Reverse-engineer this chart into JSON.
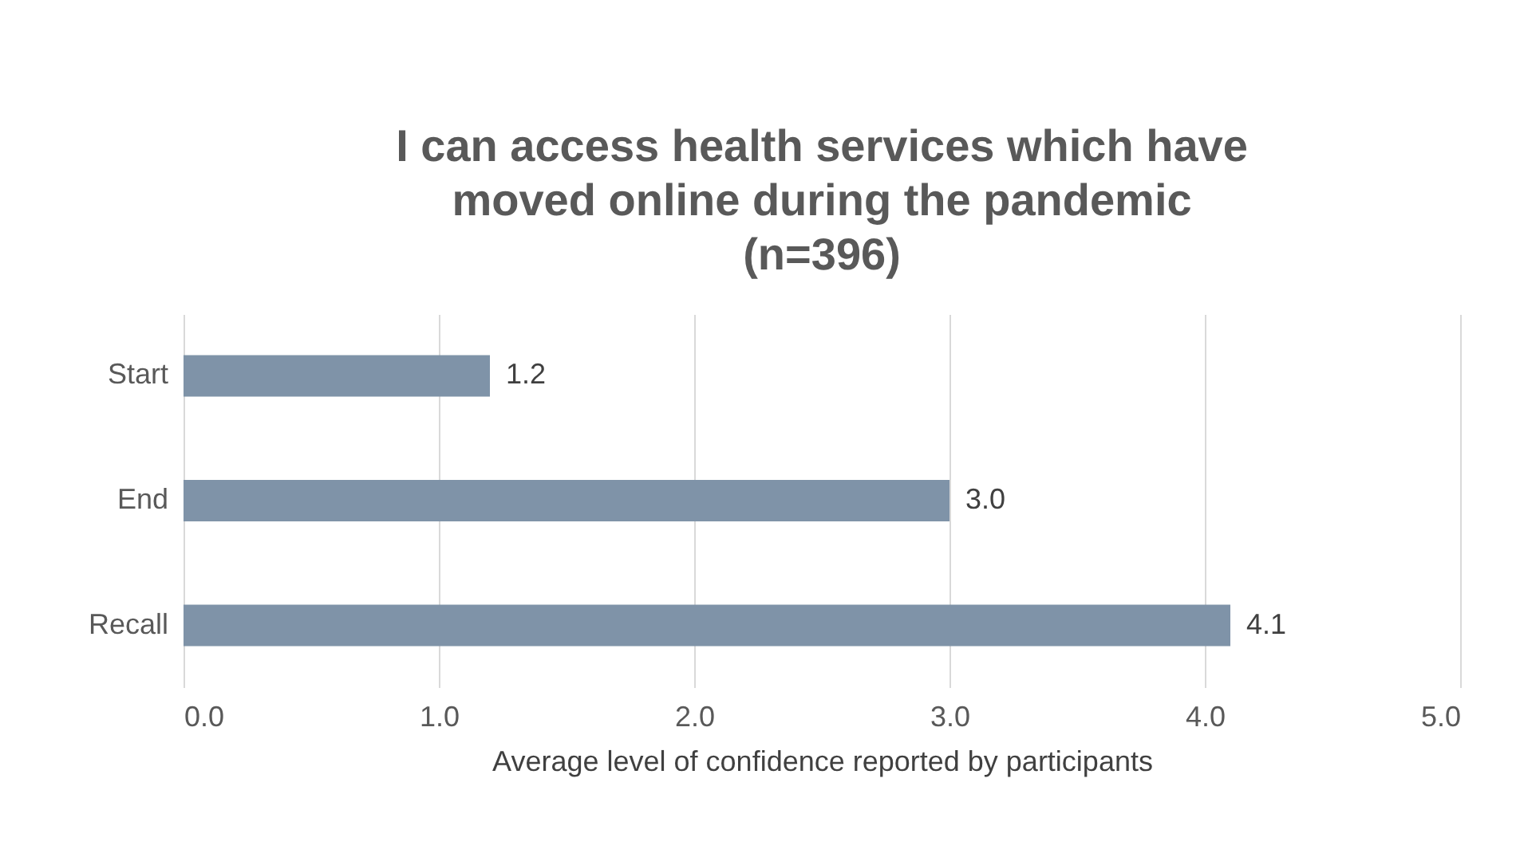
{
  "chart_data": {
    "type": "bar",
    "orientation": "horizontal",
    "title": "I can access health services which have moved online during the pandemic (n=396)",
    "xlabel": "Average level of confidence reported by participants",
    "categories": [
      "Start",
      "End",
      "Recall"
    ],
    "values": [
      1.2,
      3.0,
      4.1
    ],
    "value_labels": [
      "1.2",
      "3.0",
      "4.1"
    ],
    "color": "#7f93a8",
    "xlim": [
      0,
      5
    ],
    "xticks": [
      {
        "value": 0,
        "label": "0.0"
      },
      {
        "value": 1,
        "label": "1.0"
      },
      {
        "value": 2,
        "label": "2.0"
      },
      {
        "value": 3,
        "label": "3.0"
      },
      {
        "value": 4,
        "label": "4.0"
      },
      {
        "value": 5,
        "label": "5.0"
      }
    ],
    "grid": "x"
  }
}
